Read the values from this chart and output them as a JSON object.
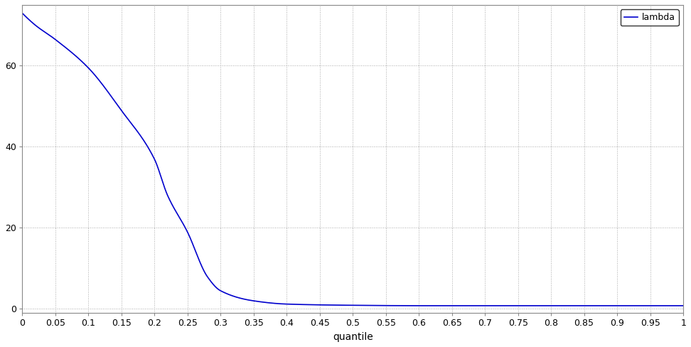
{
  "line_color": "#0000cd",
  "line_width": 1.2,
  "legend_label": "lambda",
  "xlabel": "quantile",
  "ylabel": "",
  "xlim": [
    0,
    1
  ],
  "ylim": [
    -1,
    75
  ],
  "yticks": [
    0,
    20,
    40,
    60
  ],
  "xticks": [
    0,
    0.05,
    0.1,
    0.15,
    0.2,
    0.25,
    0.3,
    0.35,
    0.4,
    0.45,
    0.5,
    0.55,
    0.6,
    0.65,
    0.7,
    0.75,
    0.8,
    0.85,
    0.9,
    0.95,
    1.0
  ],
  "xtick_labels": [
    "0",
    "0.05",
    "0.1",
    "0.15",
    "0.2",
    "0.25",
    "0.3",
    "0.35",
    "0.4",
    "0.45",
    "0.5",
    "0.55",
    "0.6",
    "0.65",
    "0.7",
    "0.75",
    "0.8",
    "0.85",
    "0.9",
    "0.95",
    "1"
  ],
  "background_color": "#ffffff",
  "grid_color": "#aaaaaa",
  "grid_style": "dotted",
  "key_points_q": [
    0.0,
    0.02,
    0.05,
    0.1,
    0.15,
    0.2,
    0.22,
    0.25,
    0.28,
    0.3,
    0.35,
    0.4,
    0.5,
    0.6,
    1.0
  ],
  "key_points_lam": [
    73.0,
    70.0,
    66.5,
    59.5,
    49.0,
    37.0,
    28.0,
    19.0,
    8.0,
    4.5,
    2.0,
    1.2,
    0.9,
    0.8,
    0.8
  ],
  "figsize": [
    9.72,
    4.88
  ],
  "dpi": 100
}
